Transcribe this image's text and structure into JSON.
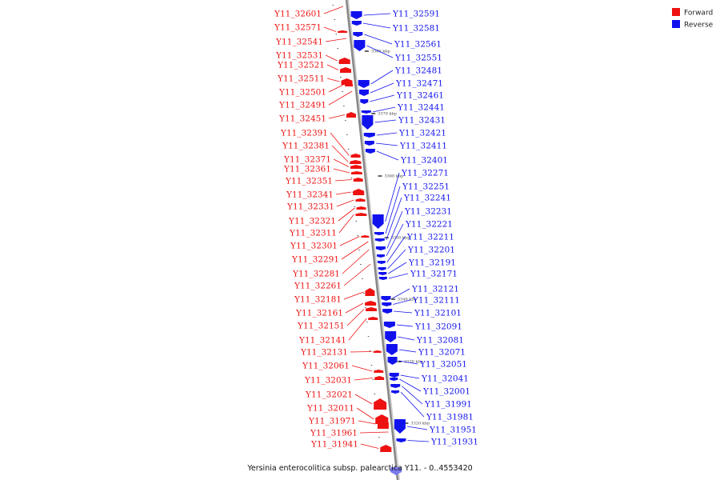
{
  "colors": {
    "forward": "#ee1111",
    "reverse": "#1111ee",
    "axis": "#888888"
  },
  "legend": [
    {
      "label": "Forward",
      "color": "#ee1111"
    },
    {
      "label": "Reverse",
      "color": "#1111ee"
    }
  ],
  "caption": "Yersinia enterocolitica subsp. palearctica Y11. - 0..4553420",
  "ticks": [
    "3380 kbp",
    "3370 kbp",
    "3360 kbp",
    "3350 kbp",
    "3340 kbp",
    "3330 kbp",
    "3320 kbp"
  ],
  "forward_genes": [
    "Y11_32601",
    "Y11_32571",
    "Y11_32541",
    "Y11_32531",
    "Y11_32521",
    "Y11_32511",
    "Y11_32501",
    "Y11_32491",
    "Y11_32451",
    "Y11_32391",
    "Y11_32381",
    "Y11_32371",
    "Y11_32361",
    "Y11_32351",
    "Y11_32341",
    "Y11_32331",
    "Y11_32321",
    "Y11_32311",
    "Y11_32301",
    "Y11_32291",
    "Y11_32281",
    "Y11_32261",
    "Y11_32181",
    "Y11_32161",
    "Y11_32151",
    "Y11_32141",
    "Y11_32131",
    "Y11_32061",
    "Y11_32031",
    "Y11_32021",
    "Y11_32011",
    "Y11_31971",
    "Y11_31961",
    "Y11_31941"
  ],
  "reverse_genes": [
    "Y11_32591",
    "Y11_32581",
    "Y11_32561",
    "Y11_32551",
    "Y11_32481",
    "Y11_32471",
    "Y11_32461",
    "Y11_32441",
    "Y11_32431",
    "Y11_32421",
    "Y11_32411",
    "Y11_32401",
    "Y11_32271",
    "Y11_32251",
    "Y11_32241",
    "Y11_32231",
    "Y11_32221",
    "Y11_32211",
    "Y11_32201",
    "Y11_32191",
    "Y11_32171",
    "Y11_32121",
    "Y11_32111",
    "Y11_32101",
    "Y11_32091",
    "Y11_32081",
    "Y11_32071",
    "Y11_32051",
    "Y11_32041",
    "Y11_32001",
    "Y11_31991",
    "Y11_31981",
    "Y11_31951",
    "Y11_31931"
  ]
}
